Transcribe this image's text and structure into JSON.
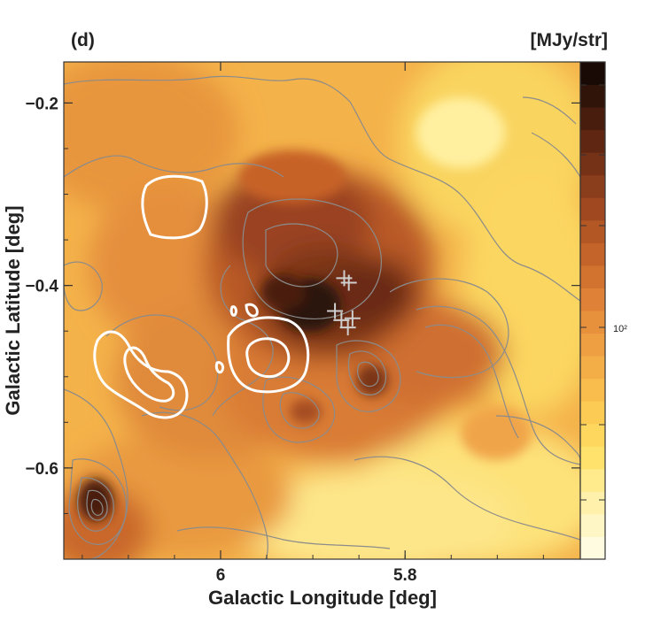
{
  "chart_data": {
    "type": "heatmap",
    "panel_label": "(d)",
    "unit_label": "[MJy/str]",
    "xlabel": "Galactic Longitude [deg]",
    "ylabel": "Galactic Latitude [deg]",
    "xlim": [
      6.17,
      5.61
    ],
    "ylim": [
      -0.7,
      -0.155
    ],
    "x_ticks": [
      6.0,
      5.8
    ],
    "x_tick_labels": [
      "6",
      "5.8"
    ],
    "y_ticks": [
      -0.2,
      -0.4,
      -0.6
    ],
    "y_tick_labels": [
      "−0.2",
      "−0.4",
      "−0.6"
    ],
    "colorbar_tick_label": "10²",
    "colorbar_tick_value": 100,
    "colormap": [
      "#fffbe0",
      "#fff1a8",
      "#ffe066",
      "#fbc850",
      "#f2a845",
      "#e58a3a",
      "#cc6a2c",
      "#a64d22",
      "#7a3418",
      "#4a1e0e",
      "#1a0a05"
    ],
    "grid": false,
    "markers": [
      {
        "symbol": "+",
        "lon": 5.866,
        "lat": -0.392
      },
      {
        "symbol": "+",
        "lon": 5.861,
        "lat": -0.397
      },
      {
        "symbol": "+",
        "lon": 5.876,
        "lat": -0.428
      },
      {
        "symbol": "+",
        "lon": 5.869,
        "lat": -0.438
      },
      {
        "symbol": "+",
        "lon": 5.857,
        "lat": -0.436
      },
      {
        "symbol": "+",
        "lon": 5.862,
        "lat": -0.446
      }
    ]
  }
}
